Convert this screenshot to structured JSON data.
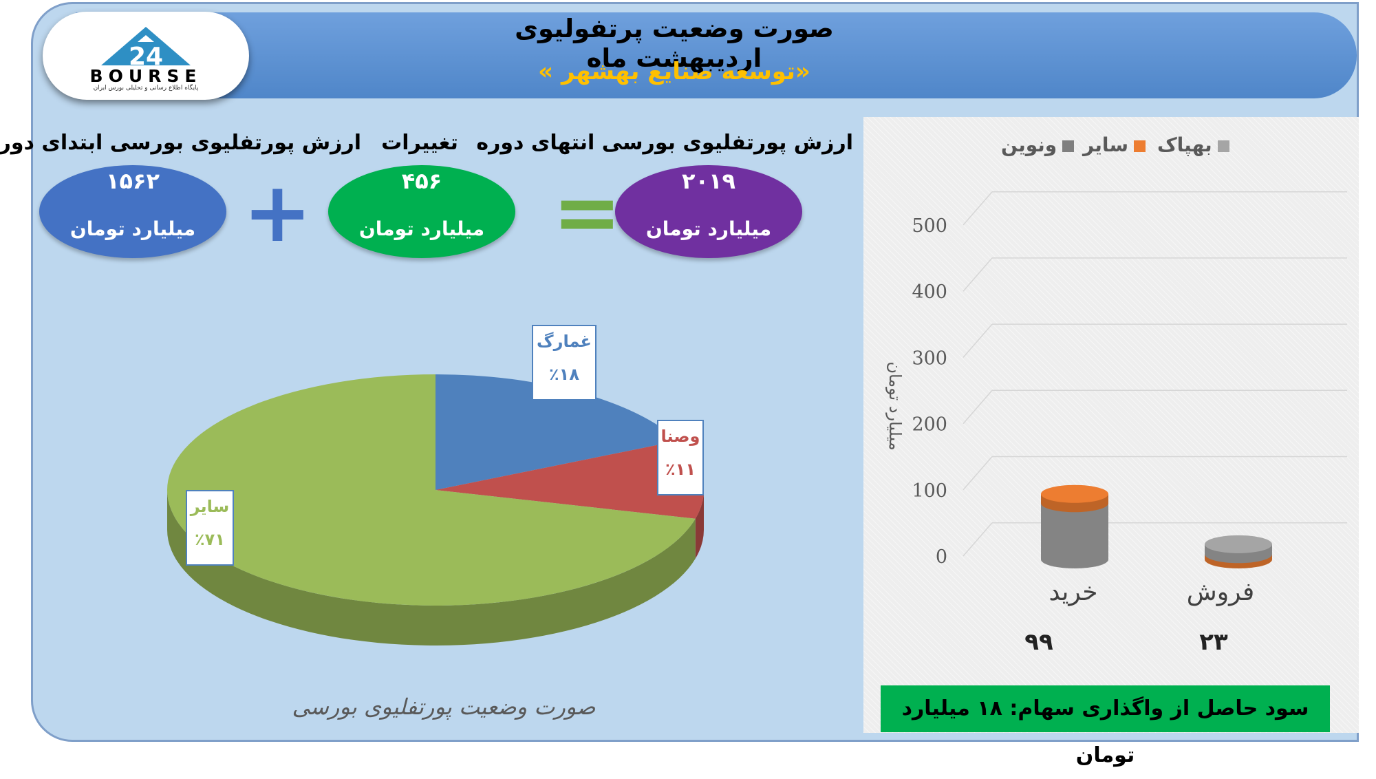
{
  "header": {
    "title": "صورت وضعیت پرتفولیوی اردیبهشت ماه",
    "subtitle": "«توسعه صنایع بهشهر »"
  },
  "logo": {
    "text": "BOURSE",
    "subtitle": "پایگاه اطلاع رسانی و تحلیلی بورس ایران"
  },
  "summary": {
    "start_label": "ارزش پورتفلیوی بورسی ابتدای دوره",
    "start_value": "۱۵۶۲",
    "change_label": "تغییرات",
    "change_value": "۴۵۶",
    "end_label": "ارزش پورتفلیوی بورسی انتهای دوره",
    "end_value": "۲۰۱۹",
    "unit": "میلیارد تومان",
    "plus": "+",
    "equals": "="
  },
  "colors": {
    "start": "#4472c4",
    "change": "#00b050",
    "end": "#7030a0",
    "pie_blue": "#4f81bd",
    "pie_red": "#c0504d",
    "pie_green": "#9bbb59",
    "bar_gray": "#8c8c8c",
    "bar_orange": "#ed7d31"
  },
  "chart_data": [
    {
      "type": "pie",
      "title": "صورت وضعیت پورتفلیوی بورسی",
      "slices": [
        {
          "label": "غمارگ",
          "value": 18,
          "display": "٪۱۸",
          "color": "#4f81bd"
        },
        {
          "label": "وصنا",
          "value": 11,
          "display": "٪۱۱",
          "color": "#c0504d"
        },
        {
          "label": "سایر",
          "value": 71,
          "display": "٪۷۱",
          "color": "#9bbb59"
        }
      ]
    },
    {
      "type": "bar",
      "stacked": true,
      "categories": [
        "خرید",
        "فروش"
      ],
      "category_values": [
        "۹۹",
        "۲۳"
      ],
      "series": [
        {
          "name": "بهپاک",
          "values": [
            85,
            15
          ],
          "color": "#a5a5a5"
        },
        {
          "name": "سایر",
          "values": [
            14,
            8
          ],
          "color": "#ed7d31"
        },
        {
          "name": "ونوین",
          "values": [
            0,
            0
          ],
          "color": "#7f7f7f"
        }
      ],
      "ylabel": "میلیارد تومان",
      "ylim": [
        0,
        500
      ],
      "yticks": [
        0,
        100,
        200,
        300,
        400,
        500
      ],
      "legend_position": "top"
    }
  ],
  "profit": "سود حاصل از واگذاری سهام: ۱۸ میلیارد تومان"
}
